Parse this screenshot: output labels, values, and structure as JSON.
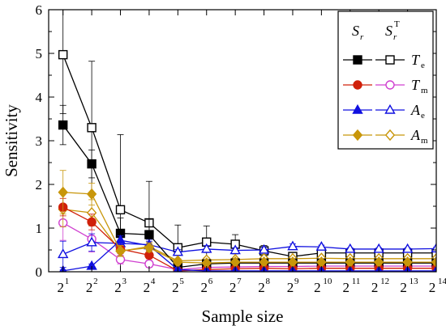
{
  "chart_data": {
    "type": "line",
    "title": "",
    "xlabel": "Sample size",
    "ylabel": "Sensitivity",
    "xlim": [
      0.5,
      14
    ],
    "ylim": [
      0,
      6
    ],
    "y_ticks": [
      0,
      1,
      2,
      3,
      4,
      5,
      6
    ],
    "x_ticks": [
      1,
      2,
      3,
      4,
      5,
      6,
      7,
      8,
      9,
      10,
      11,
      12,
      13,
      14
    ],
    "x_tick_base": "2",
    "x_tick_exponents": [
      "1",
      "2",
      "3",
      "4",
      "5",
      "6",
      "7",
      "8",
      "9",
      "10",
      "11",
      "12",
      "13",
      "14"
    ],
    "grid": false,
    "legend_placement": "top-right",
    "legend_header": {
      "col1_main": "S",
      "col1_sub": "r",
      "col2_main": "S",
      "col2_sub": "r",
      "col2_sup": "T"
    },
    "legend_entries": [
      {
        "main": "T",
        "sub": "e"
      },
      {
        "main": "T",
        "sub": "m"
      },
      {
        "main": "A",
        "sub": "e"
      },
      {
        "main": "A",
        "sub": "m"
      }
    ],
    "series": [
      {
        "param_index": 0,
        "kind": "Sr",
        "color": "#000000",
        "marker": "square",
        "filled": true,
        "x": [
          1,
          2,
          3,
          4,
          5,
          6,
          7,
          8,
          9,
          10,
          11,
          12,
          13,
          14
        ],
        "y": [
          3.36,
          2.47,
          0.88,
          0.85,
          0.1,
          0.18,
          0.2,
          0.2,
          0.2,
          0.2,
          0.2,
          0.2,
          0.2,
          0.2
        ],
        "err": [
          0.45,
          0.32,
          0.35,
          0.35,
          0.05,
          0.05,
          0.05,
          0.03,
          0.03,
          0.03,
          0.03,
          0.03,
          0.03,
          0.03
        ]
      },
      {
        "param_index": 0,
        "kind": "ST",
        "color": "#000000",
        "marker": "square",
        "filled": false,
        "x": [
          1,
          2,
          3,
          4,
          5,
          6,
          7,
          8,
          9,
          10,
          11,
          12,
          13,
          14
        ],
        "y": [
          4.97,
          3.3,
          1.42,
          1.12,
          0.55,
          0.68,
          0.63,
          0.48,
          0.35,
          0.43,
          0.43,
          0.43,
          0.43,
          0.43
        ],
        "err": [
          1.35,
          1.52,
          1.72,
          0.95,
          0.52,
          0.37,
          0.22,
          0.12,
          0.05,
          0.04,
          0.03,
          0.03,
          0.03,
          0.03
        ]
      },
      {
        "param_index": 1,
        "kind": "Sr",
        "color": "#d0200a",
        "marker": "circle",
        "filled": true,
        "x": [
          1,
          2,
          3,
          4,
          5,
          6,
          7,
          8,
          9,
          10,
          11,
          12,
          13,
          14
        ],
        "y": [
          1.48,
          1.14,
          0.52,
          0.38,
          0.02,
          0.05,
          0.07,
          0.08,
          0.07,
          0.08,
          0.08,
          0.08,
          0.08,
          0.08
        ],
        "err": [
          0.2,
          0.18,
          0.1,
          0.08,
          0.02,
          0.02,
          0.02,
          0.02,
          0.02,
          0.02,
          0.02,
          0.02,
          0.02,
          0.02
        ]
      },
      {
        "param_index": 1,
        "kind": "ST",
        "color": "#d040d0",
        "marker": "circle",
        "filled": false,
        "x": [
          1,
          2,
          3,
          4,
          5,
          6,
          7,
          8,
          9,
          10,
          11,
          12,
          13,
          14
        ],
        "y": [
          1.12,
          0.75,
          0.28,
          0.18,
          0.05,
          0.1,
          0.11,
          0.12,
          0.12,
          0.13,
          0.13,
          0.13,
          0.13,
          0.13
        ],
        "err": [
          0.4,
          0.3,
          0.1,
          0.08,
          0.03,
          0.03,
          0.03,
          0.02,
          0.02,
          0.02,
          0.02,
          0.02,
          0.02,
          0.02
        ]
      },
      {
        "param_index": 2,
        "kind": "Sr",
        "color": "#1010e0",
        "marker": "triangle",
        "filled": true,
        "x": [
          1,
          2,
          3,
          4,
          5,
          6,
          7,
          8,
          9,
          10,
          11,
          12,
          13,
          14
        ],
        "y": [
          0.02,
          0.13,
          0.72,
          0.6,
          0.05,
          0.02,
          0.02,
          0.02,
          0.02,
          0.02,
          0.02,
          0.02,
          0.02,
          0.02
        ],
        "err": [
          0.02,
          0.05,
          0.1,
          0.1,
          0.02,
          0.01,
          0.01,
          0.01,
          0.01,
          0.01,
          0.01,
          0.01,
          0.01,
          0.01
        ]
      },
      {
        "param_index": 2,
        "kind": "ST",
        "color": "#1010e0",
        "marker": "triangle",
        "filled": false,
        "x": [
          1,
          2,
          3,
          4,
          5,
          6,
          7,
          8,
          9,
          10,
          11,
          12,
          13,
          14
        ],
        "y": [
          0.4,
          0.67,
          0.65,
          0.62,
          0.45,
          0.52,
          0.49,
          0.5,
          0.58,
          0.57,
          0.52,
          0.52,
          0.52,
          0.53
        ],
        "err": [
          0.3,
          0.2,
          0.15,
          0.12,
          0.06,
          0.08,
          0.06,
          0.06,
          0.06,
          0.04,
          0.03,
          0.03,
          0.03,
          0.03
        ]
      },
      {
        "param_index": 3,
        "kind": "Sr",
        "color": "#c8960a",
        "marker": "diamond",
        "filled": true,
        "x": [
          1,
          2,
          3,
          4,
          5,
          6,
          7,
          8,
          9,
          10,
          11,
          12,
          13,
          14
        ],
        "y": [
          1.82,
          1.78,
          0.48,
          0.55,
          0.22,
          0.2,
          0.22,
          0.22,
          0.22,
          0.22,
          0.22,
          0.22,
          0.22,
          0.22
        ],
        "err": [
          0.5,
          0.25,
          0.12,
          0.1,
          0.05,
          0.04,
          0.04,
          0.03,
          0.03,
          0.03,
          0.03,
          0.03,
          0.03,
          0.03
        ]
      },
      {
        "param_index": 3,
        "kind": "ST",
        "color": "#c8960a",
        "marker": "diamond",
        "filled": false,
        "x": [
          1,
          2,
          3,
          4,
          5,
          6,
          7,
          8,
          9,
          10,
          11,
          12,
          13,
          14
        ],
        "y": [
          1.43,
          1.35,
          0.47,
          0.58,
          0.25,
          0.27,
          0.28,
          0.3,
          0.3,
          0.31,
          0.3,
          0.3,
          0.3,
          0.3
        ],
        "err": [
          0.4,
          0.3,
          0.12,
          0.1,
          0.05,
          0.05,
          0.04,
          0.04,
          0.03,
          0.03,
          0.03,
          0.03,
          0.03,
          0.03
        ]
      }
    ]
  }
}
